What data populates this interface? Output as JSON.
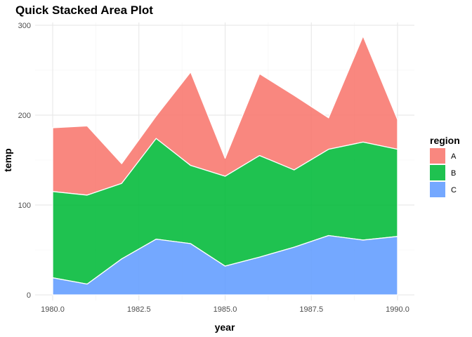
{
  "chart_data": {
    "type": "area",
    "stacked": true,
    "title": "Quick Stacked Area Plot",
    "xlabel": "year",
    "ylabel": "temp",
    "x": [
      1980,
      1981,
      1982,
      1983,
      1984,
      1985,
      1986,
      1987,
      1988,
      1989,
      1990
    ],
    "xlim": [
      1980,
      1990
    ],
    "ylim": [
      0,
      300
    ],
    "x_ticks": [
      1980,
      1982.5,
      1985,
      1987.5,
      1990
    ],
    "x_tick_labels": [
      "1980.0",
      "1982.5",
      "1985.0",
      "1987.5",
      "1990.0"
    ],
    "y_ticks": [
      0,
      100,
      200,
      300
    ],
    "y_tick_labels": [
      "0",
      "100",
      "200",
      "300"
    ],
    "grid": true,
    "legend": {
      "title": "region",
      "position": "right"
    },
    "series": [
      {
        "name": "A",
        "color": "#F8766D",
        "values": [
          71,
          77,
          22,
          25,
          104,
          20,
          91,
          83,
          35,
          118,
          33
        ]
      },
      {
        "name": "B",
        "color": "#00BA38",
        "values": [
          96,
          99,
          84,
          112,
          87,
          100,
          113,
          86,
          96,
          109,
          97
        ]
      },
      {
        "name": "C",
        "color": "#619CFF",
        "values": [
          19,
          12,
          40,
          62,
          57,
          32,
          42,
          53,
          66,
          61,
          65
        ]
      }
    ]
  }
}
